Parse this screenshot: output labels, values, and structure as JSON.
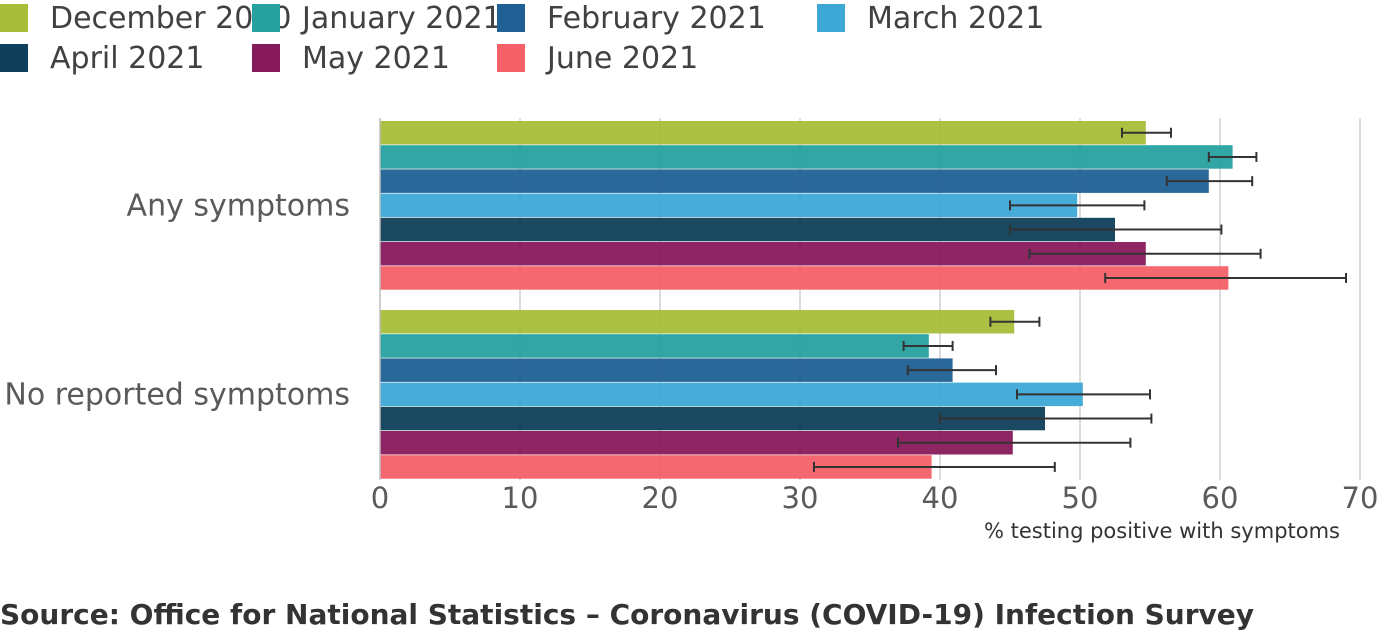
{
  "chart_data": {
    "type": "bar",
    "orientation": "horizontal",
    "categories": [
      "Any symptoms",
      "No reported symptoms"
    ],
    "series": [
      {
        "name": "December 2020",
        "color": "#a8bd3a",
        "values": [
          54.7,
          45.3
        ],
        "ci_low": [
          53.0,
          43.6
        ],
        "ci_high": [
          56.5,
          47.1
        ]
      },
      {
        "name": "January 2021",
        "color": "#27a0a0",
        "values": [
          60.9,
          39.2
        ],
        "ci_low": [
          59.2,
          37.4
        ],
        "ci_high": [
          62.6,
          40.9
        ]
      },
      {
        "name": "February 2021",
        "color": "#206095",
        "values": [
          59.2,
          40.9
        ],
        "ci_low": [
          56.2,
          37.7
        ],
        "ci_high": [
          62.3,
          44.0
        ]
      },
      {
        "name": "March 2021",
        "color": "#3da8d5",
        "values": [
          49.8,
          50.2
        ],
        "ci_low": [
          45.0,
          45.5
        ],
        "ci_high": [
          54.6,
          55.0
        ]
      },
      {
        "name": "April 2021",
        "color": "#0f3f5a",
        "values": [
          52.5,
          47.5
        ],
        "ci_low": [
          45.0,
          40.0
        ],
        "ci_high": [
          60.1,
          55.1
        ]
      },
      {
        "name": "May 2021",
        "color": "#871a5b",
        "values": [
          54.7,
          45.2
        ],
        "ci_low": [
          46.4,
          37.0
        ],
        "ci_high": [
          62.9,
          53.6
        ]
      },
      {
        "name": "June 2021",
        "color": "#f66068",
        "values": [
          60.6,
          39.4
        ],
        "ci_low": [
          51.8,
          31.0
        ],
        "ci_high": [
          69.0,
          48.2
        ]
      }
    ],
    "x": {
      "range": [
        0,
        70
      ],
      "ticks": [
        "0",
        "10",
        "20",
        "30",
        "40",
        "50",
        "60",
        "70"
      ],
      "label": "% testing positive with symptoms"
    },
    "grid": true,
    "legend_position": "top"
  },
  "source": "Source: Office for National Statistics – Coronavirus (COVID-19) Infection Survey"
}
